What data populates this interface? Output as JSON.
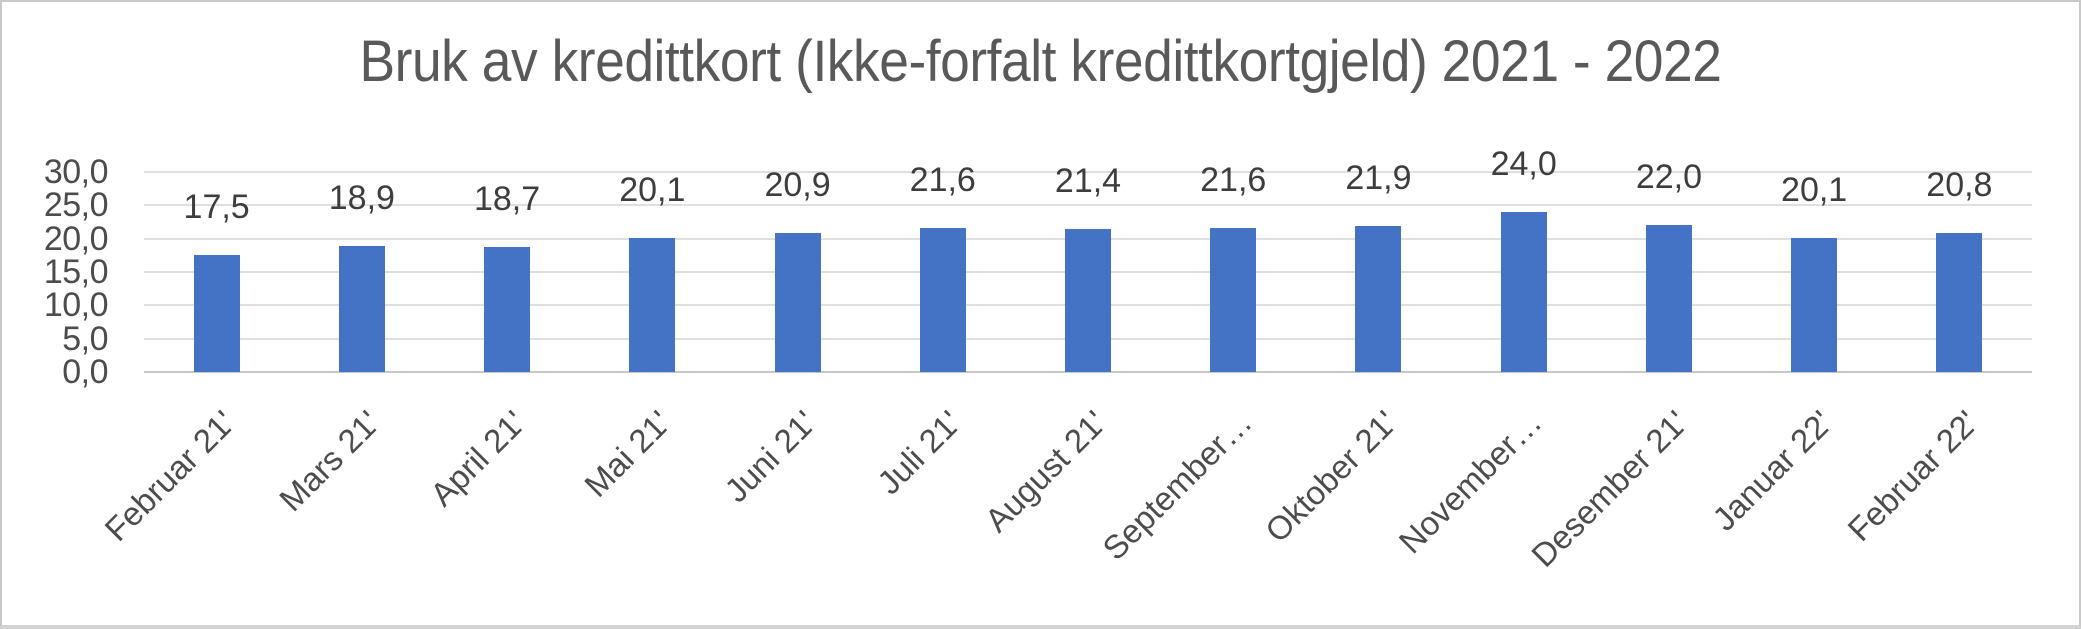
{
  "chart_data": {
    "type": "bar",
    "title": "Bruk av kredittkort (Ikke-forfalt kredittkortgjeld) 2021 - 2022",
    "categories": [
      "Februar 21'",
      "Mars 21'",
      "April 21'",
      "Mai 21'",
      "Juni 21'",
      "Juli 21'",
      "August 21'",
      "September…",
      "Oktober 21'",
      "November…",
      "Desember 21'",
      "Januar 22'",
      "Februar 22'"
    ],
    "values": [
      17.5,
      18.9,
      18.7,
      20.1,
      20.9,
      21.6,
      21.4,
      21.6,
      21.9,
      24.0,
      22.0,
      20.1,
      20.8
    ],
    "value_labels": [
      "17,5",
      "18,9",
      "18,7",
      "20,1",
      "20,9",
      "21,6",
      "21,4",
      "21,6",
      "21,9",
      "24,0",
      "22,0",
      "20,1",
      "20,8"
    ],
    "xlabel": "",
    "ylabel": "",
    "ylim": [
      0,
      30
    ],
    "ytick_step": 5,
    "ytick_labels_top_to_bottom": [
      "30,0",
      "25,0",
      "20,0",
      "15,0",
      "10,0",
      "5,0",
      "0,0"
    ],
    "grid": "horizontal",
    "legend_position": "none",
    "colors": {
      "bar": "#4472C4",
      "title_text": "#595959",
      "axis_text": "#4c4c4c",
      "data_label_text": "#3d3d3d",
      "gridline": "#dfdfdf",
      "axis_line": "#c7c7c7",
      "frame_border": "#c9c9c9",
      "background": "#ffffff"
    }
  }
}
